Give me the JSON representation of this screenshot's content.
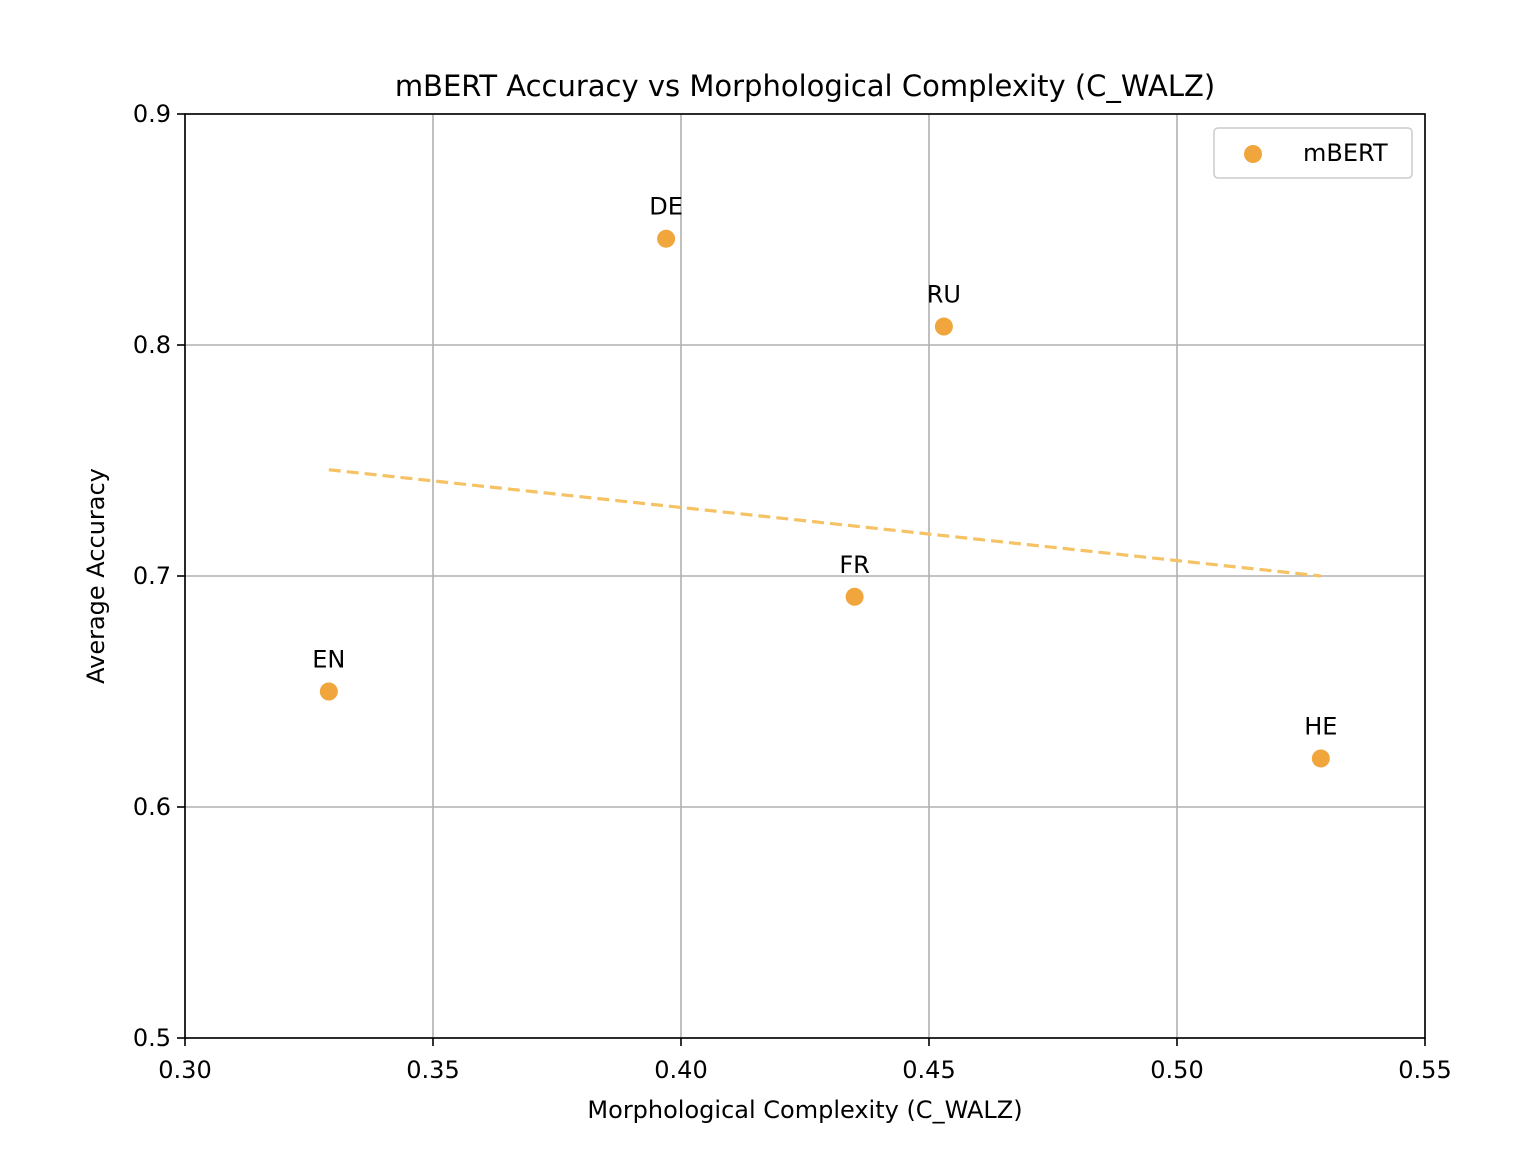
{
  "chart_data": {
    "type": "scatter",
    "title": "mBERT Accuracy vs Morphological Complexity (C_WALZ)",
    "xlabel": "Morphological Complexity (C_WALZ)",
    "ylabel": "Average Accuracy",
    "xlim": [
      0.3,
      0.55
    ],
    "ylim": [
      0.5,
      0.9
    ],
    "xticks": [
      "0.30",
      "0.35",
      "0.40",
      "0.45",
      "0.50",
      "0.55"
    ],
    "xtick_values": [
      0.3,
      0.35,
      0.4,
      0.45,
      0.5,
      0.55
    ],
    "yticks": [
      "0.5",
      "0.6",
      "0.7",
      "0.8",
      "0.9"
    ],
    "ytick_values": [
      0.5,
      0.6,
      0.7,
      0.8,
      0.9
    ],
    "grid": true,
    "legend_position": "top-right",
    "series": [
      {
        "name": "mBERT",
        "color": "#f0a63c",
        "points": [
          {
            "label": "EN",
            "x": 0.329,
            "y": 0.65
          },
          {
            "label": "DE",
            "x": 0.397,
            "y": 0.846
          },
          {
            "label": "FR",
            "x": 0.435,
            "y": 0.691
          },
          {
            "label": "RU",
            "x": 0.453,
            "y": 0.808
          },
          {
            "label": "HE",
            "x": 0.529,
            "y": 0.621
          }
        ]
      }
    ],
    "trendline": {
      "style": "dashed",
      "color": "#f5c264",
      "points": [
        {
          "x": 0.329,
          "y": 0.746
        },
        {
          "x": 0.529,
          "y": 0.7
        }
      ]
    }
  }
}
